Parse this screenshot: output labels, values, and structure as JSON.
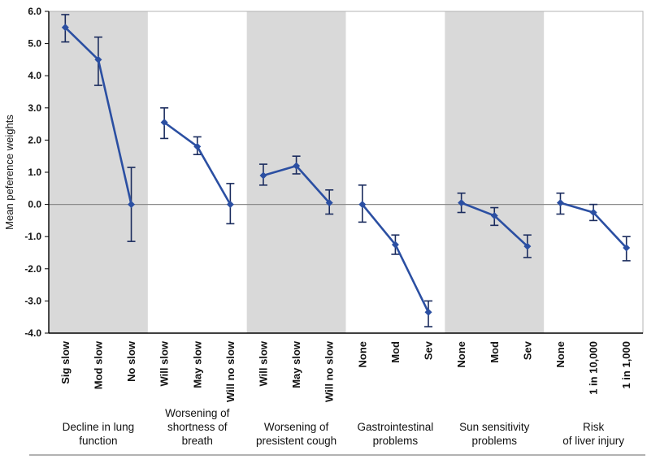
{
  "chart_data": {
    "type": "line",
    "title": "",
    "ylabel": "Mean peference weights",
    "xlabel": "",
    "ylim": [
      -4.0,
      6.0
    ],
    "ytick_step": 1.0,
    "grid": false,
    "zero_line": true,
    "legend": "none",
    "colors": {
      "line": "#2b4fa2",
      "marker": "#2b4fa2",
      "error": "#1b2c5e",
      "stripe": "#d9d9d9",
      "axis": "#000000",
      "zero": "#8c8c8c",
      "border": "#b3b3b3",
      "bottom_rule": "#666666"
    },
    "groups": [
      {
        "label": "Decline in lung function",
        "label_lines": [
          "Decline in lung",
          "function"
        ],
        "shaded": true,
        "points": [
          {
            "label": "Sig slow",
            "mean": 5.5,
            "lo": 5.05,
            "hi": 5.9
          },
          {
            "label": "Mod slow",
            "mean": 4.5,
            "lo": 3.7,
            "hi": 5.2
          },
          {
            "label": "No slow",
            "mean": 0.0,
            "lo": -1.15,
            "hi": 1.15
          }
        ]
      },
      {
        "label": "Worsening of shortness of breath",
        "label_lines": [
          "Worsening of",
          "shortness of",
          "breath"
        ],
        "shaded": false,
        "points": [
          {
            "label": "Will slow",
            "mean": 2.55,
            "lo": 2.05,
            "hi": 3.0
          },
          {
            "label": "May slow",
            "mean": 1.8,
            "lo": 1.55,
            "hi": 2.1
          },
          {
            "label": "Will no slow",
            "mean": 0.0,
            "lo": -0.6,
            "hi": 0.65
          }
        ]
      },
      {
        "label": "Worsening of presistent cough",
        "label_lines": [
          "Worsening of",
          "presistent cough"
        ],
        "shaded": true,
        "points": [
          {
            "label": "Will slow",
            "mean": 0.9,
            "lo": 0.6,
            "hi": 1.25
          },
          {
            "label": "May slow",
            "mean": 1.2,
            "lo": 0.95,
            "hi": 1.5
          },
          {
            "label": "Will no slow",
            "mean": 0.05,
            "lo": -0.3,
            "hi": 0.45
          }
        ]
      },
      {
        "label": "Gastrointestinal problems",
        "label_lines": [
          "Gastrointestinal",
          "problems"
        ],
        "shaded": false,
        "points": [
          {
            "label": "None",
            "mean": 0.0,
            "lo": -0.55,
            "hi": 0.6
          },
          {
            "label": "Mod",
            "mean": -1.25,
            "lo": -1.55,
            "hi": -0.95
          },
          {
            "label": "Sev",
            "mean": -3.35,
            "lo": -3.8,
            "hi": -3.0
          }
        ]
      },
      {
        "label": "Sun sensitivity problems",
        "label_lines": [
          "Sun sensitivity",
          "problems"
        ],
        "shaded": true,
        "points": [
          {
            "label": "None",
            "mean": 0.05,
            "lo": -0.25,
            "hi": 0.35
          },
          {
            "label": "Mod",
            "mean": -0.35,
            "lo": -0.65,
            "hi": -0.1
          },
          {
            "label": "Sev",
            "mean": -1.3,
            "lo": -1.65,
            "hi": -0.95
          }
        ]
      },
      {
        "label": "Risk of liver injury",
        "label_lines": [
          "Risk",
          "of liver injury"
        ],
        "shaded": false,
        "points": [
          {
            "label": "None",
            "mean": 0.05,
            "lo": -0.3,
            "hi": 0.35
          },
          {
            "label": "1 in 10,000",
            "mean": -0.25,
            "lo": -0.5,
            "hi": 0.0
          },
          {
            "label": "1 in 1,000",
            "mean": -1.35,
            "lo": -1.75,
            "hi": -1.0
          }
        ]
      }
    ]
  }
}
